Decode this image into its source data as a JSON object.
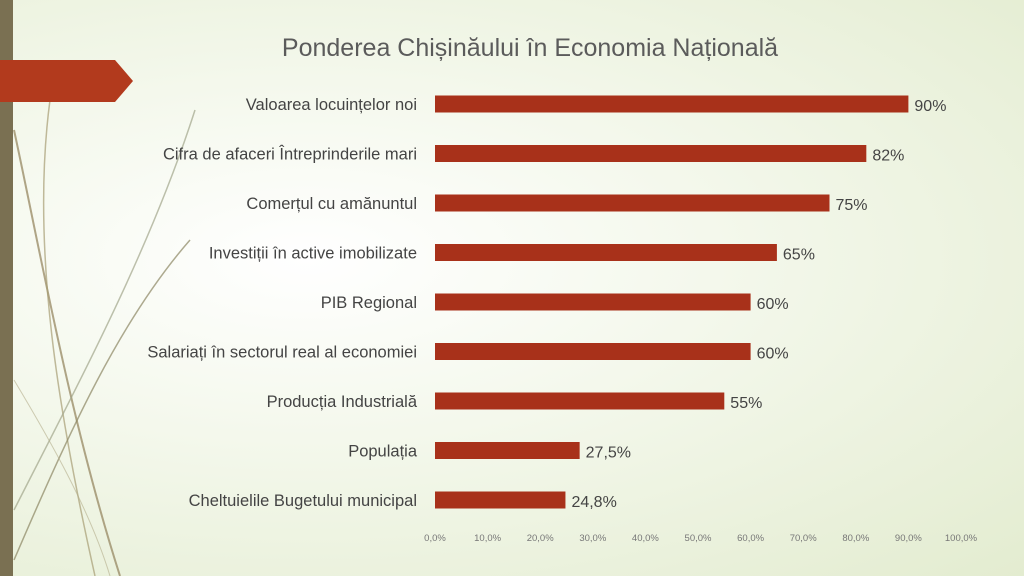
{
  "chart_data": {
    "type": "bar",
    "orientation": "horizontal",
    "title": "Ponderea Chișinăului în Economia Națională",
    "categories": [
      "Valoarea locuințelor noi",
      "Cifra de afaceri Întreprinderile mari",
      "Comerțul cu amănuntul",
      "Investiții în active imobilizate",
      "PIB Regional",
      "Salariați în sectorul real al economiei",
      "Producția Industrială",
      "Populația",
      "Cheltuielile Bugetului municipal"
    ],
    "values": [
      90,
      82,
      75,
      65,
      60,
      60,
      55,
      27.5,
      24.8
    ],
    "data_labels": [
      "90%",
      "82%",
      "75%",
      "65%",
      "60%",
      "60%",
      "55%",
      "27,5%",
      "24,8%"
    ],
    "xlim": [
      0,
      100
    ],
    "x_ticks": [
      "0,0%",
      "10,0%",
      "20,0%",
      "30,0%",
      "40,0%",
      "50,0%",
      "60,0%",
      "70,0%",
      "80,0%",
      "90,0%",
      "100,0%"
    ],
    "grid": false,
    "legend": "none",
    "bar_color": "#a8311a"
  },
  "colors": {
    "title": "#5b5b5b",
    "label": "#444444",
    "tick": "#777777",
    "accent_bar": "#7a7052",
    "arrow": "#b23a1d"
  }
}
